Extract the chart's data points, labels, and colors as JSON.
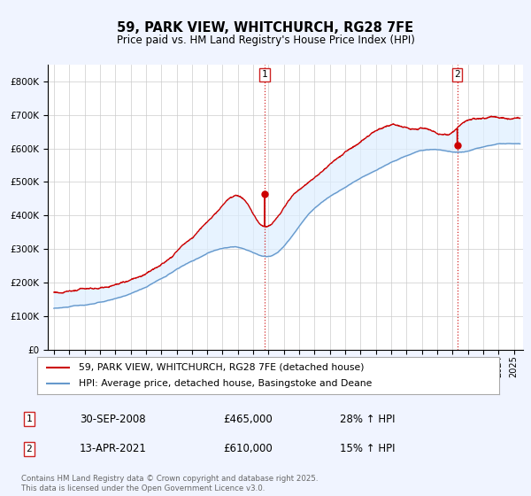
{
  "title": "59, PARK VIEW, WHITCHURCH, RG28 7FE",
  "subtitle": "Price paid vs. HM Land Registry's House Price Index (HPI)",
  "red_label": "59, PARK VIEW, WHITCHURCH, RG28 7FE (detached house)",
  "blue_label": "HPI: Average price, detached house, Basingstoke and Deane",
  "annotation1": {
    "num": "1",
    "date": "30-SEP-2008",
    "price": "£465,000",
    "hpi": "28% ↑ HPI",
    "x": 2008.75
  },
  "annotation2": {
    "num": "2",
    "date": "13-APR-2021",
    "price": "£610,000",
    "hpi": "15% ↑ HPI",
    "x": 2021.3
  },
  "footer": "Contains HM Land Registry data © Crown copyright and database right 2025.\nThis data is licensed under the Open Government Licence v3.0.",
  "ylim": [
    0,
    850000
  ],
  "xlim_start": 1994.6,
  "xlim_end": 2025.6,
  "red_color": "#cc0000",
  "blue_color": "#6699cc",
  "fill_color": "#ddeeff",
  "background_color": "#f0f4ff",
  "plot_bg_color": "#ffffff",
  "grid_color": "#cccccc",
  "ann_dot1_val": 465000,
  "ann_dot2_val": 610000
}
